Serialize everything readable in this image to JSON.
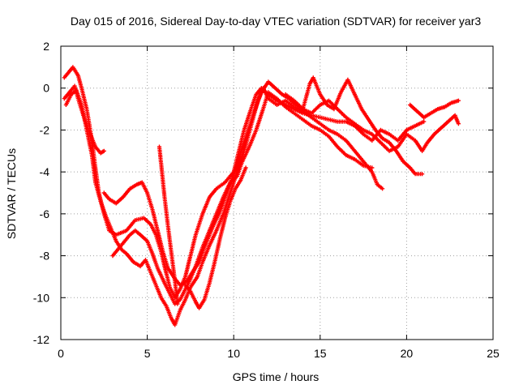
{
  "chart_data": {
    "type": "scatter",
    "title": "Day 015 of 2016, Sidereal Day-to-day VTEC variation (SDTVAR) for receiver yar3",
    "xlabel": "GPS time / hours",
    "ylabel": "SDTVAR / TECUs",
    "xlim": [
      0,
      25
    ],
    "ylim": [
      -12,
      2
    ],
    "x_ticks": [
      0,
      5,
      10,
      15,
      20,
      25
    ],
    "y_ticks": [
      -12,
      -10,
      -8,
      -6,
      -4,
      -2,
      0,
      2
    ],
    "x_tick_labels": [
      "0",
      "5",
      "10",
      "15",
      "20",
      "25"
    ],
    "y_tick_labels": [
      "-12",
      "-10",
      "-8",
      "-6",
      "-4",
      "-2",
      "0",
      "2"
    ],
    "grid": true,
    "legend": "none",
    "marker": "+",
    "color": "#ff0000",
    "series": [
      {
        "points": [
          [
            0.2,
            0.5
          ],
          [
            0.5,
            0.8
          ],
          [
            0.7,
            1.0
          ],
          [
            1.0,
            0.6
          ],
          [
            1.2,
            0.0
          ],
          [
            1.5,
            -1.0
          ],
          [
            1.8,
            -2.5
          ],
          [
            2.0,
            -3.8
          ],
          [
            2.2,
            -5.0
          ],
          [
            2.5,
            -6.0
          ],
          [
            2.8,
            -6.8
          ],
          [
            3.2,
            -7.0
          ],
          [
            3.8,
            -6.8
          ],
          [
            4.3,
            -6.3
          ],
          [
            4.8,
            -6.2
          ],
          [
            5.2,
            -6.5
          ],
          [
            5.5,
            -7.0
          ],
          [
            5.8,
            -7.8
          ],
          [
            6.0,
            -8.5
          ],
          [
            6.3,
            -9.5
          ],
          [
            6.6,
            -10.0
          ],
          [
            6.9,
            -9.6
          ],
          [
            7.2,
            -9.0
          ],
          [
            7.5,
            -8.0
          ],
          [
            7.8,
            -7.0
          ],
          [
            8.2,
            -6.0
          ],
          [
            8.6,
            -5.2
          ],
          [
            9.0,
            -4.8
          ],
          [
            9.5,
            -4.5
          ],
          [
            10.0,
            -4.0
          ],
          [
            10.3,
            -3.0
          ],
          [
            10.6,
            -2.0
          ],
          [
            11.0,
            -1.0
          ],
          [
            11.3,
            -0.3
          ],
          [
            11.6,
            0.0
          ],
          [
            12.0,
            -0.3
          ],
          [
            12.5,
            -0.6
          ],
          [
            13.0,
            -0.8
          ],
          [
            13.5,
            -1.0
          ],
          [
            14.0,
            -1.2
          ],
          [
            14.5,
            -1.3
          ],
          [
            15.0,
            -1.4
          ],
          [
            15.5,
            -1.5
          ],
          [
            16.0,
            -1.6
          ],
          [
            16.5,
            -1.6
          ],
          [
            17.0,
            -1.8
          ],
          [
            17.5,
            -2.2
          ],
          [
            18.0,
            -2.5
          ],
          [
            18.5,
            -2.0
          ],
          [
            19.0,
            -2.2
          ],
          [
            19.5,
            -2.5
          ],
          [
            20.0,
            -2.0
          ],
          [
            20.5,
            -1.8
          ],
          [
            21.0,
            -1.6
          ]
        ]
      },
      {
        "points": [
          [
            0.2,
            -0.5
          ],
          [
            0.5,
            -0.2
          ],
          [
            0.8,
            0.1
          ],
          [
            1.0,
            -0.5
          ],
          [
            1.3,
            -1.3
          ],
          [
            1.6,
            -2.0
          ],
          [
            2.0,
            -2.8
          ],
          [
            2.3,
            -3.1
          ],
          [
            2.5,
            -3.0
          ]
        ]
      },
      {
        "points": [
          [
            0.3,
            -0.8
          ],
          [
            0.6,
            -0.3
          ],
          [
            0.9,
            -0.1
          ],
          [
            1.2,
            -0.8
          ],
          [
            1.5,
            -2.0
          ],
          [
            1.8,
            -3.2
          ],
          [
            2.0,
            -4.5
          ],
          [
            2.3,
            -5.4
          ],
          [
            2.6,
            -6.1
          ],
          [
            2.9,
            -6.7
          ],
          [
            3.2,
            -7.3
          ],
          [
            3.5,
            -7.7
          ],
          [
            3.8,
            -7.9
          ],
          [
            4.2,
            -8.3
          ],
          [
            4.6,
            -8.5
          ],
          [
            4.9,
            -8.2
          ],
          [
            5.2,
            -8.8
          ],
          [
            5.5,
            -9.4
          ],
          [
            5.8,
            -10.0
          ],
          [
            6.1,
            -10.4
          ],
          [
            6.4,
            -11.0
          ],
          [
            6.6,
            -11.3
          ],
          [
            6.9,
            -10.6
          ],
          [
            7.2,
            -10.1
          ],
          [
            7.5,
            -9.5
          ],
          [
            7.9,
            -9.0
          ],
          [
            8.2,
            -8.3
          ],
          [
            8.6,
            -7.5
          ],
          [
            9.0,
            -6.8
          ],
          [
            9.4,
            -6.0
          ],
          [
            9.8,
            -5.0
          ],
          [
            10.2,
            -4.0
          ],
          [
            10.6,
            -3.0
          ],
          [
            11.0,
            -1.8
          ],
          [
            11.4,
            -0.6
          ],
          [
            11.7,
            0.0
          ],
          [
            12.0,
            -0.5
          ],
          [
            12.5,
            -0.8
          ],
          [
            13.0,
            -0.6
          ],
          [
            13.5,
            -0.9
          ],
          [
            14.0,
            -1.1
          ],
          [
            14.5,
            -1.4
          ],
          [
            15.0,
            -1.7
          ],
          [
            15.5,
            -2.0
          ],
          [
            16.0,
            -2.2
          ],
          [
            16.5,
            -2.5
          ],
          [
            17.0,
            -3.0
          ],
          [
            17.5,
            -3.5
          ],
          [
            18.0,
            -4.0
          ],
          [
            18.3,
            -4.6
          ],
          [
            18.6,
            -4.8
          ]
        ]
      },
      {
        "points": [
          [
            3.0,
            -8.0
          ],
          [
            3.5,
            -7.5
          ],
          [
            4.0,
            -7.0
          ],
          [
            4.3,
            -6.8
          ],
          [
            4.6,
            -7.0
          ],
          [
            5.0,
            -7.3
          ],
          [
            5.3,
            -7.9
          ],
          [
            5.6,
            -8.6
          ],
          [
            6.0,
            -9.3
          ],
          [
            6.3,
            -9.8
          ],
          [
            6.6,
            -10.3
          ],
          [
            6.9,
            -10.1
          ],
          [
            7.2,
            -9.6
          ],
          [
            7.5,
            -9.1
          ],
          [
            7.8,
            -8.5
          ],
          [
            8.2,
            -7.6
          ],
          [
            8.6,
            -6.8
          ],
          [
            9.0,
            -6.0
          ],
          [
            9.4,
            -5.2
          ],
          [
            9.8,
            -4.5
          ],
          [
            10.2,
            -4.2
          ],
          [
            10.5,
            -3.5
          ],
          [
            10.9,
            -2.8
          ],
          [
            11.3,
            -2.0
          ],
          [
            11.7,
            -1.0
          ],
          [
            12.0,
            -0.2
          ],
          [
            12.5,
            -0.5
          ],
          [
            13.0,
            -0.9
          ],
          [
            13.5,
            -1.2
          ],
          [
            14.0,
            -1.5
          ],
          [
            14.5,
            -1.8
          ],
          [
            15.0,
            -2.0
          ],
          [
            15.5,
            -2.3
          ],
          [
            16.0,
            -2.8
          ],
          [
            16.5,
            -3.2
          ],
          [
            17.0,
            -3.4
          ],
          [
            17.5,
            -3.7
          ],
          [
            18.0,
            -3.8
          ]
        ]
      },
      {
        "points": [
          [
            2.5,
            -5.0
          ],
          [
            2.8,
            -5.3
          ],
          [
            3.2,
            -5.5
          ],
          [
            3.6,
            -5.2
          ],
          [
            4.0,
            -4.8
          ],
          [
            4.4,
            -4.6
          ],
          [
            4.7,
            -4.5
          ],
          [
            5.0,
            -5.0
          ],
          [
            5.3,
            -5.8
          ],
          [
            5.6,
            -6.8
          ],
          [
            5.9,
            -7.8
          ],
          [
            6.2,
            -8.6
          ],
          [
            6.6,
            -9.1
          ],
          [
            6.9,
            -9.4
          ],
          [
            7.3,
            -9.2
          ],
          [
            7.6,
            -8.8
          ],
          [
            8.0,
            -8.3
          ],
          [
            8.4,
            -7.4
          ],
          [
            8.8,
            -6.6
          ],
          [
            9.2,
            -5.9
          ],
          [
            9.6,
            -5.0
          ],
          [
            10.0,
            -4.1
          ],
          [
            10.4,
            -3.1
          ],
          [
            10.8,
            -2.1
          ],
          [
            11.2,
            -1.1
          ],
          [
            11.6,
            -0.2
          ],
          [
            12.0,
            0.3
          ],
          [
            12.4,
            0.0
          ],
          [
            12.8,
            -0.3
          ],
          [
            13.2,
            -0.5
          ],
          [
            13.6,
            -0.8
          ],
          [
            14.0,
            -1.0
          ],
          [
            14.4,
            0.2
          ],
          [
            14.6,
            0.5
          ],
          [
            15.0,
            -0.3
          ],
          [
            15.4,
            -0.8
          ],
          [
            15.8,
            -1.0
          ],
          [
            16.2,
            -0.2
          ],
          [
            16.6,
            0.4
          ],
          [
            17.0,
            -0.3
          ],
          [
            17.4,
            -1.0
          ],
          [
            17.8,
            -1.5
          ],
          [
            18.2,
            -2.0
          ],
          [
            18.6,
            -2.4
          ],
          [
            19.0,
            -2.6
          ],
          [
            19.4,
            -3.0
          ],
          [
            19.8,
            -3.5
          ],
          [
            20.2,
            -3.8
          ],
          [
            20.5,
            -4.1
          ],
          [
            20.9,
            -4.1
          ]
        ]
      },
      {
        "points": [
          [
            5.7,
            -2.8
          ],
          [
            5.85,
            -4.0
          ],
          [
            6.0,
            -5.2
          ],
          [
            6.2,
            -6.6
          ],
          [
            6.4,
            -7.9
          ],
          [
            6.6,
            -9.2
          ],
          [
            6.75,
            -10.3
          ]
        ]
      },
      {
        "points": [
          [
            7.2,
            -9.4
          ],
          [
            7.5,
            -9.7
          ],
          [
            7.8,
            -10.2
          ],
          [
            8.0,
            -10.5
          ],
          [
            8.3,
            -10.1
          ],
          [
            8.6,
            -9.3
          ],
          [
            8.9,
            -8.3
          ],
          [
            9.2,
            -7.2
          ],
          [
            9.5,
            -6.2
          ],
          [
            9.8,
            -5.4
          ],
          [
            10.1,
            -4.8
          ],
          [
            10.4,
            -4.4
          ],
          [
            10.7,
            -3.8
          ]
        ]
      },
      {
        "points": [
          [
            13.0,
            -0.3
          ],
          [
            13.5,
            -0.6
          ],
          [
            14.0,
            -1.0
          ],
          [
            14.5,
            -1.2
          ],
          [
            15.0,
            -0.8
          ],
          [
            15.5,
            -0.6
          ],
          [
            16.0,
            -1.0
          ],
          [
            16.5,
            -1.4
          ],
          [
            17.0,
            -1.7
          ],
          [
            17.5,
            -2.0
          ],
          [
            18.0,
            -2.2
          ],
          [
            18.5,
            -2.6
          ],
          [
            19.0,
            -3.0
          ],
          [
            19.5,
            -2.8
          ],
          [
            20.0,
            -2.2
          ],
          [
            20.5,
            -2.5
          ],
          [
            20.9,
            -3.0
          ],
          [
            21.2,
            -2.6
          ],
          [
            21.6,
            -2.2
          ],
          [
            22.0,
            -1.9
          ],
          [
            22.4,
            -1.6
          ],
          [
            22.8,
            -1.3
          ],
          [
            23.0,
            -1.7
          ]
        ]
      },
      {
        "points": [
          [
            20.2,
            -0.8
          ],
          [
            20.6,
            -1.1
          ],
          [
            21.0,
            -1.4
          ],
          [
            21.4,
            -1.2
          ],
          [
            21.8,
            -1.0
          ],
          [
            22.2,
            -0.9
          ],
          [
            22.6,
            -0.7
          ],
          [
            23.0,
            -0.6
          ]
        ]
      }
    ]
  }
}
